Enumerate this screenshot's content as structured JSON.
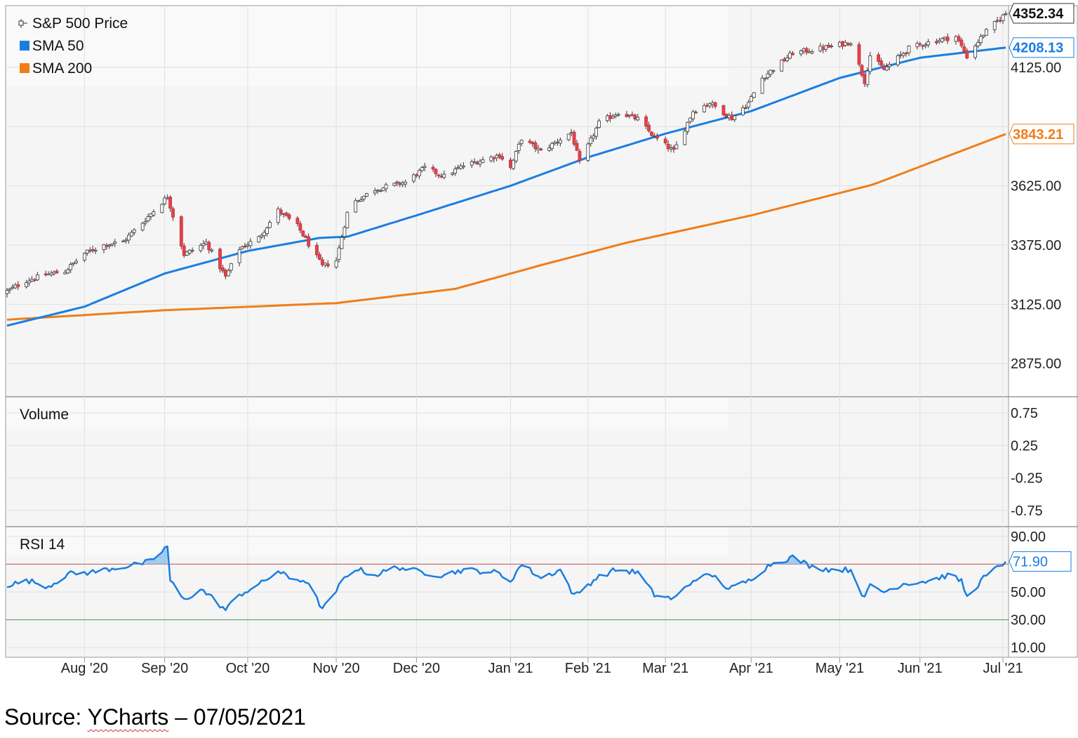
{
  "source": {
    "prefix": "Source: ",
    "brand": "YCharts",
    "suffix": " – 07/05/2021"
  },
  "chart_data": {
    "type": "candlestick",
    "title": "",
    "x_labels": [
      "Aug '20",
      "Sep '20",
      "Oct '20",
      "Nov '20",
      "Dec '20",
      "Jan '21",
      "Feb '21",
      "Mar '21",
      "Apr '21",
      "May '21",
      "Jun '21",
      "Jul '21"
    ],
    "x_range": [
      "2020-07-06",
      "2021-07-02"
    ],
    "price_panel": {
      "legend": [
        {
          "name": "S&P 500 Price",
          "color": "#000000",
          "icon": "candlestick-icon"
        },
        {
          "name": "SMA 50",
          "color": "#1a7ee0"
        },
        {
          "name": "SMA 200",
          "color": "#f07d19"
        }
      ],
      "y_ticks": [
        2875,
        3125,
        3375,
        3625,
        3875,
        4125
      ],
      "y_tick_labels": [
        "2875.00",
        "3125.00",
        "3375.00",
        "3625.00",
        "",
        "4125.00"
      ],
      "ylim": [
        2735,
        4385
      ],
      "last_values": {
        "price": "4352.34",
        "sma50": "4208.13",
        "sma200": "3843.21"
      },
      "colors": {
        "up": "#ffffff",
        "down": "#e8414b",
        "wick": "#333333",
        "sma50": "#1a7ee0",
        "sma200": "#f07d19"
      },
      "close_anchors": [
        [
          "2020-07-06",
          3180
        ],
        [
          "2020-07-13",
          3225
        ],
        [
          "2020-07-20",
          3250
        ],
        [
          "2020-07-27",
          3265
        ],
        [
          "2020-08-03",
          3340
        ],
        [
          "2020-08-10",
          3375
        ],
        [
          "2020-08-17",
          3390
        ],
        [
          "2020-08-24",
          3470
        ],
        [
          "2020-09-02",
          3580
        ],
        [
          "2020-09-08",
          3335
        ],
        [
          "2020-09-16",
          3385
        ],
        [
          "2020-09-23",
          3240
        ],
        [
          "2020-09-28",
          3360
        ],
        [
          "2020-10-05",
          3405
        ],
        [
          "2020-10-12",
          3520
        ],
        [
          "2020-10-19",
          3455
        ],
        [
          "2020-10-28",
          3285
        ],
        [
          "2020-11-02",
          3310
        ],
        [
          "2020-11-06",
          3510
        ],
        [
          "2020-11-09",
          3560
        ],
        [
          "2020-11-16",
          3610
        ],
        [
          "2020-11-27",
          3640
        ],
        [
          "2020-12-04",
          3700
        ],
        [
          "2020-12-11",
          3665
        ],
        [
          "2020-12-18",
          3710
        ],
        [
          "2020-12-31",
          3755
        ],
        [
          "2021-01-04",
          3700
        ],
        [
          "2021-01-08",
          3825
        ],
        [
          "2021-01-15",
          3770
        ],
        [
          "2021-01-26",
          3850
        ],
        [
          "2021-01-29",
          3720
        ],
        [
          "2021-02-05",
          3890
        ],
        [
          "2021-02-12",
          3935
        ],
        [
          "2021-02-19",
          3906
        ],
        [
          "2021-02-25",
          3830
        ],
        [
          "2021-03-04",
          3770
        ],
        [
          "2021-03-11",
          3940
        ],
        [
          "2021-03-17",
          3975
        ],
        [
          "2021-03-25",
          3910
        ],
        [
          "2021-03-31",
          3975
        ],
        [
          "2021-04-05",
          4080
        ],
        [
          "2021-04-16",
          4185
        ],
        [
          "2021-04-29",
          4210
        ],
        [
          "2021-05-07",
          4232
        ],
        [
          "2021-05-12",
          4065
        ],
        [
          "2021-05-14",
          4175
        ],
        [
          "2021-05-19",
          4115
        ],
        [
          "2021-05-28",
          4205
        ],
        [
          "2021-06-04",
          4230
        ],
        [
          "2021-06-14",
          4255
        ],
        [
          "2021-06-18",
          4170
        ],
        [
          "2021-06-24",
          4265
        ],
        [
          "2021-07-02",
          4352.34
        ]
      ],
      "sma50_anchors": [
        [
          "2020-07-06",
          3035
        ],
        [
          "2020-08-03",
          3115
        ],
        [
          "2020-09-01",
          3255
        ],
        [
          "2020-10-01",
          3350
        ],
        [
          "2020-10-27",
          3405
        ],
        [
          "2020-11-06",
          3410
        ],
        [
          "2020-12-01",
          3500
        ],
        [
          "2021-01-04",
          3625
        ],
        [
          "2021-02-01",
          3745
        ],
        [
          "2021-03-01",
          3845
        ],
        [
          "2021-04-01",
          3940
        ],
        [
          "2021-05-03",
          4080
        ],
        [
          "2021-06-01",
          4165
        ],
        [
          "2021-07-02",
          4208.13
        ]
      ],
      "sma200_anchors": [
        [
          "2020-07-06",
          3060
        ],
        [
          "2020-09-01",
          3100
        ],
        [
          "2020-11-02",
          3130
        ],
        [
          "2020-12-15",
          3190
        ],
        [
          "2021-01-15",
          3290
        ],
        [
          "2021-02-15",
          3385
        ],
        [
          "2021-04-01",
          3500
        ],
        [
          "2021-05-15",
          3630
        ],
        [
          "2021-07-02",
          3843.21
        ]
      ]
    },
    "volume_panel": {
      "label": "Volume",
      "y_tick_labels": [
        "0.75",
        "0.25",
        "-0.25",
        "-0.75"
      ],
      "ylim": [
        -1,
        1
      ]
    },
    "rsi_panel": {
      "label": "RSI 14",
      "y_tick_labels": [
        "90.00",
        "50.00",
        "30.00",
        "10.00"
      ],
      "ylim": [
        3,
        97
      ],
      "overbought": 70,
      "oversold": 30,
      "last_value": "71.90",
      "color": "#1a7ee0",
      "anchors": [
        [
          "2020-07-06",
          55
        ],
        [
          "2020-07-14",
          58
        ],
        [
          "2020-07-21",
          54
        ],
        [
          "2020-07-28",
          63
        ],
        [
          "2020-08-05",
          64
        ],
        [
          "2020-08-13",
          67
        ],
        [
          "2020-08-20",
          69
        ],
        [
          "2020-08-27",
          72
        ],
        [
          "2020-09-02",
          83
        ],
        [
          "2020-09-03",
          58
        ],
        [
          "2020-09-08",
          44
        ],
        [
          "2020-09-14",
          52
        ],
        [
          "2020-09-18",
          46
        ],
        [
          "2020-09-23",
          37
        ],
        [
          "2020-09-28",
          48
        ],
        [
          "2020-10-05",
          55
        ],
        [
          "2020-10-12",
          65
        ],
        [
          "2020-10-16",
          60
        ],
        [
          "2020-10-22",
          58
        ],
        [
          "2020-10-28",
          38
        ],
        [
          "2020-10-30",
          42
        ],
        [
          "2020-11-05",
          60
        ],
        [
          "2020-11-09",
          67
        ],
        [
          "2020-11-16",
          62
        ],
        [
          "2020-11-24",
          68
        ],
        [
          "2020-12-01",
          65
        ],
        [
          "2020-12-10",
          62
        ],
        [
          "2020-12-18",
          66
        ],
        [
          "2020-12-30",
          64
        ],
        [
          "2021-01-04",
          58
        ],
        [
          "2021-01-08",
          70
        ],
        [
          "2021-01-15",
          60
        ],
        [
          "2021-01-22",
          66
        ],
        [
          "2021-01-27",
          47
        ],
        [
          "2021-02-04",
          60
        ],
        [
          "2021-02-11",
          66
        ],
        [
          "2021-02-19",
          64
        ],
        [
          "2021-02-25",
          48
        ],
        [
          "2021-03-04",
          45
        ],
        [
          "2021-03-12",
          60
        ],
        [
          "2021-03-18",
          62
        ],
        [
          "2021-03-24",
          52
        ],
        [
          "2021-03-31",
          58
        ],
        [
          "2021-04-08",
          70
        ],
        [
          "2021-04-16",
          75
        ],
        [
          "2021-04-23",
          68
        ],
        [
          "2021-04-30",
          66
        ],
        [
          "2021-05-07",
          66
        ],
        [
          "2021-05-12",
          45
        ],
        [
          "2021-05-14",
          55
        ],
        [
          "2021-05-19",
          50
        ],
        [
          "2021-05-26",
          56
        ],
        [
          "2021-06-04",
          58
        ],
        [
          "2021-06-11",
          62
        ],
        [
          "2021-06-16",
          58
        ],
        [
          "2021-06-18",
          46
        ],
        [
          "2021-06-24",
          60
        ],
        [
          "2021-07-02",
          71.9
        ]
      ]
    }
  }
}
